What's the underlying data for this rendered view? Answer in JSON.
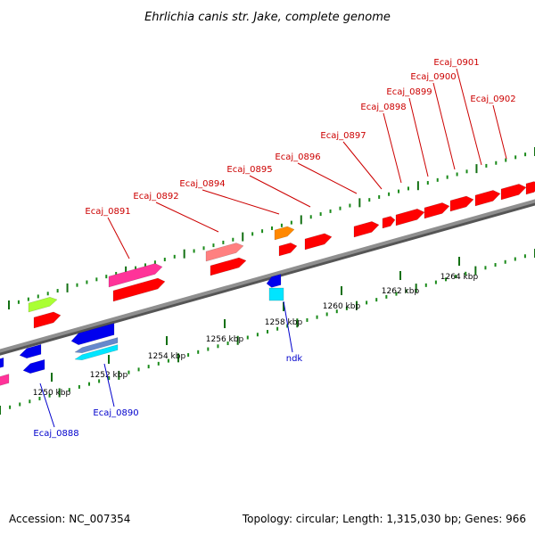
{
  "title": "Ehrlichia canis str. Jake, complete genome",
  "footer": {
    "accession": "Accession: NC_007354",
    "summary": "Topology: circular; Length: 1,315,030 bp; Genes: 966"
  },
  "colors": {
    "backbone": "#8f8f8f",
    "minor_tick": "#1a8a1a",
    "major_tick": "#137013",
    "label_red": "#cc0000",
    "label_blue": "#0000cc"
  },
  "scale_labels": [
    "1250 kbp",
    "1252 kbp",
    "1254 kbp",
    "1256 kbp",
    "1258 kbp",
    "1260 kbp",
    "1262 kbp",
    "1264 kbp"
  ],
  "gene_labels": {
    "top": [
      "Ecaj_0891",
      "Ecaj_0892",
      "Ecaj_0894",
      "Ecaj_0895",
      "Ecaj_0896",
      "Ecaj_0897",
      "Ecaj_0898",
      "Ecaj_0899",
      "Ecaj_0900",
      "Ecaj_0901",
      "Ecaj_0902"
    ],
    "bottom": [
      "Ecaj_0888",
      "Ecaj_0890",
      "ndk"
    ]
  },
  "feature_colors": [
    "#ff0000",
    "#ff3399",
    "#aaff33",
    "#0000ee",
    "#6688cc",
    "#00e5ff",
    "#ff8800",
    "#ff8080"
  ]
}
